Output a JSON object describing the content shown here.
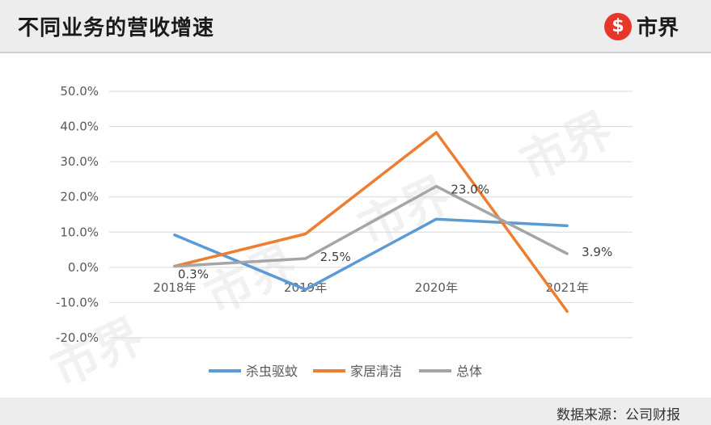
{
  "header": {
    "title": "不同业务的营收增速",
    "brand_mark": "$",
    "brand_name": "市界"
  },
  "watermark": "市界",
  "footer": {
    "source": "数据来源：公司财报"
  },
  "colors": {
    "series_1": "#5b9bd5",
    "series_2": "#ed7d31",
    "series_3": "#a5a5a5",
    "brand": "#e8362b"
  },
  "chart_data": {
    "type": "line",
    "title": "",
    "xlabel": "",
    "ylabel": "",
    "categories": [
      "2018年",
      "2019年",
      "2020年",
      "2021年"
    ],
    "ylim": [
      -20,
      50
    ],
    "yticks": [
      50,
      40,
      30,
      20,
      10,
      0,
      -10,
      -20
    ],
    "ytick_labels": [
      "50.0%",
      "40.0%",
      "30.0%",
      "20.0%",
      "10.0%",
      "0.0%",
      "-10.0%",
      "-20.0%"
    ],
    "grid": true,
    "legend_position": "bottom",
    "series": [
      {
        "name": "杀虫驱蚊",
        "values": [
          9.2,
          -6.3,
          13.7,
          11.8
        ]
      },
      {
        "name": "家居清洁",
        "values": [
          0.3,
          9.5,
          38.3,
          -12.5
        ]
      },
      {
        "name": "总体",
        "values": [
          0.3,
          2.5,
          23.0,
          3.9
        ],
        "data_labels": [
          "0.3%",
          "2.5%",
          "23.0%",
          "3.9%"
        ]
      }
    ]
  }
}
